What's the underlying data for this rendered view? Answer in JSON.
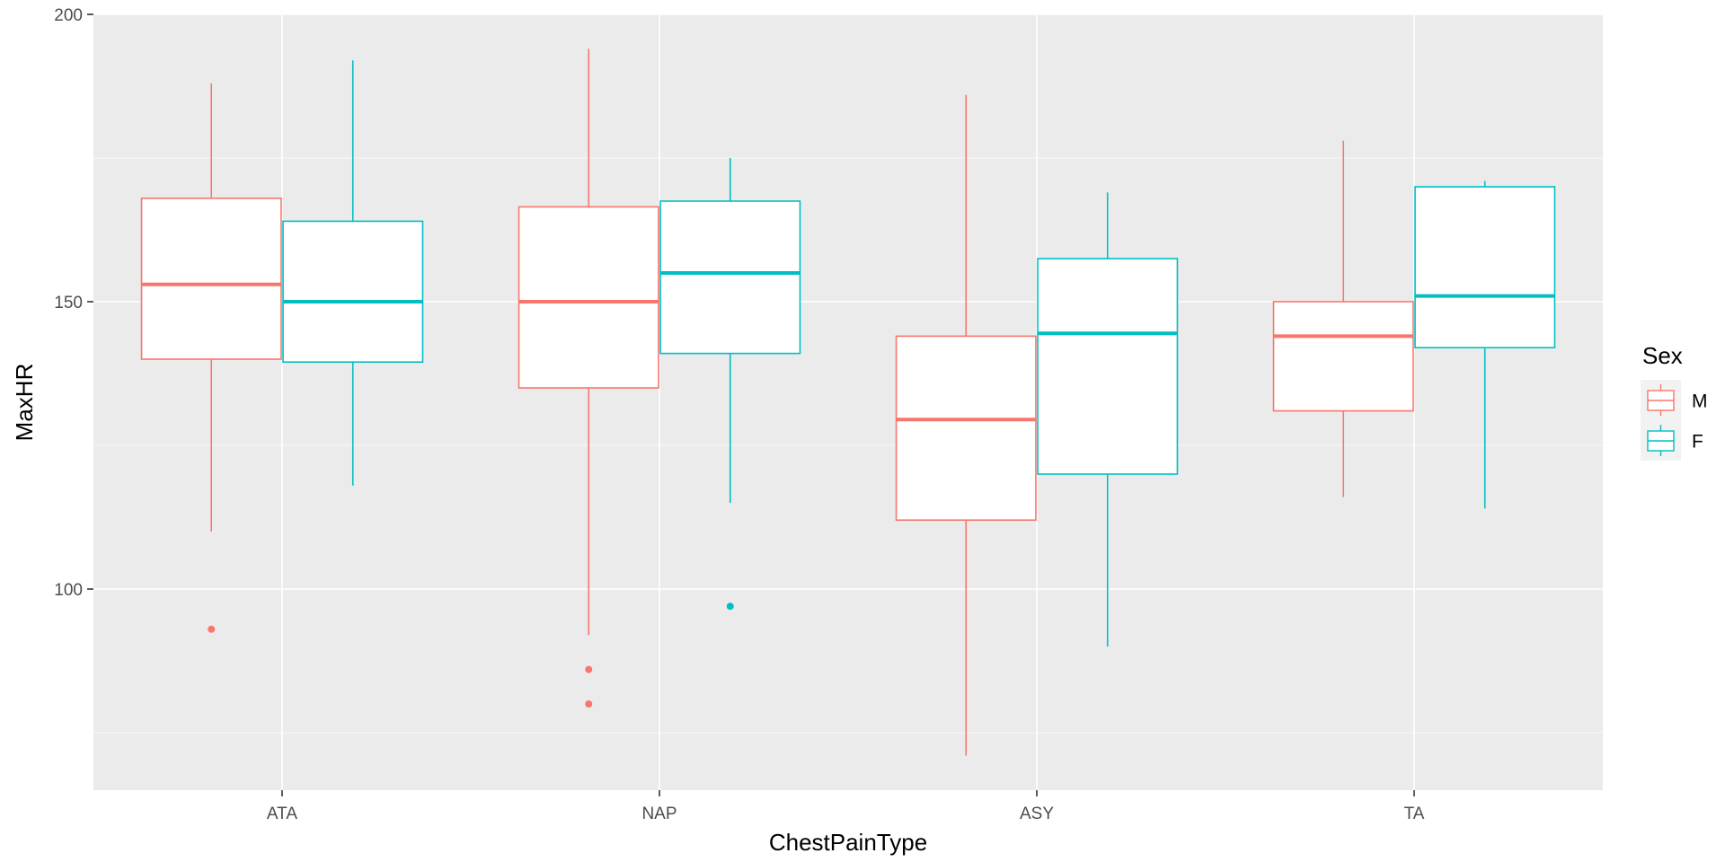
{
  "chart_data": {
    "type": "boxplot",
    "xlabel": "ChestPainType",
    "ylabel": "MaxHR",
    "categories": [
      "ATA",
      "NAP",
      "ASY",
      "TA"
    ],
    "ylim": [
      65,
      200
    ],
    "yticks": [
      100,
      150,
      200
    ],
    "grid": true,
    "legend": {
      "title": "Sex",
      "placement": "right"
    },
    "series": [
      {
        "name": "M",
        "color": "#F8766D",
        "boxes": [
          {
            "category": "ATA",
            "whisker_low": 110,
            "q1": 140,
            "median": 153,
            "q3": 168,
            "whisker_high": 188,
            "outliers": [
              93
            ]
          },
          {
            "category": "NAP",
            "whisker_low": 92,
            "q1": 135,
            "median": 150,
            "q3": 166.5,
            "whisker_high": 194,
            "outliers": [
              86,
              80
            ]
          },
          {
            "category": "ASY",
            "whisker_low": 71,
            "q1": 112,
            "median": 129.5,
            "q3": 144,
            "whisker_high": 186,
            "outliers": []
          },
          {
            "category": "TA",
            "whisker_low": 116,
            "q1": 131,
            "median": 144,
            "q3": 150,
            "whisker_high": 178,
            "outliers": []
          }
        ]
      },
      {
        "name": "F",
        "color": "#00BFC4",
        "boxes": [
          {
            "category": "ATA",
            "whisker_low": 118,
            "q1": 139.5,
            "median": 150,
            "q3": 164,
            "whisker_high": 192,
            "outliers": []
          },
          {
            "category": "NAP",
            "whisker_low": 115,
            "q1": 141,
            "median": 155,
            "q3": 167.5,
            "whisker_high": 175,
            "outliers": [
              97
            ]
          },
          {
            "category": "ASY",
            "whisker_low": 90,
            "q1": 120,
            "median": 144.5,
            "q3": 157.5,
            "whisker_high": 169,
            "outliers": []
          },
          {
            "category": "TA",
            "whisker_low": 114,
            "q1": 142,
            "median": 151,
            "q3": 170,
            "whisker_high": 171,
            "outliers": []
          }
        ]
      }
    ]
  }
}
